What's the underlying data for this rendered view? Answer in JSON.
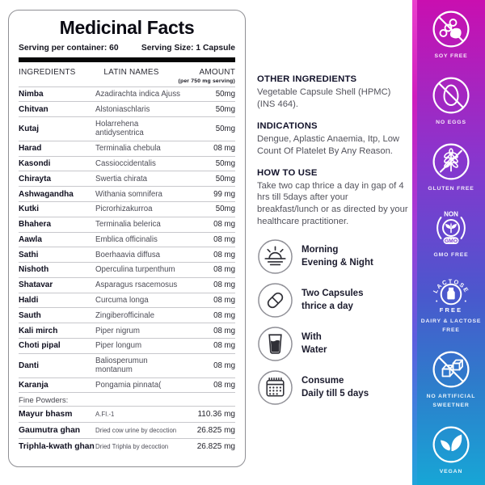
{
  "label": {
    "title": "Medicinal Facts",
    "serving_per_container": "Serving per container: 60",
    "serving_size": "Serving Size: 1 Capsule",
    "columns": {
      "ingredients": "INGREDIENTS",
      "latin": "LATIN NAMES",
      "amount": "AMOUNT",
      "amount_note": "(per 750 mg serving)"
    },
    "rows": [
      {
        "name": "Nimba",
        "latin": "Azadirachta indica Ajuss",
        "amount": "50mg"
      },
      {
        "name": "Chitvan",
        "latin": "Alstoniaschlaris",
        "amount": "50mg"
      },
      {
        "name": "Kutaj",
        "latin": "Holarrehena antidysentrica",
        "amount": "50mg"
      },
      {
        "name": "Harad",
        "latin": "Terminalia chebula",
        "amount": "08 mg"
      },
      {
        "name": "Kasondi",
        "latin": "Cassioccidentalis",
        "amount": "50mg"
      },
      {
        "name": "Chirayta",
        "latin": "Swertia chirata",
        "amount": "50mg"
      },
      {
        "name": "Ashwagandha",
        "latin": "Withania somnifera",
        "amount": "99 mg"
      },
      {
        "name": "Kutki",
        "latin": "Picrorhizakurroa",
        "amount": "50mg"
      },
      {
        "name": "Bhahera",
        "latin": "Terminalia belerica",
        "amount": "08 mg"
      },
      {
        "name": "Aawla",
        "latin": "Emblica officinalis",
        "amount": "08 mg"
      },
      {
        "name": "Sathi",
        "latin": "Boerhaavia diffusa",
        "amount": "08 mg"
      },
      {
        "name": "Nishoth",
        "latin": "Operculina turpenthum",
        "amount": "08 mg"
      },
      {
        "name": "Shatavar",
        "latin": "Asparagus rsacemosus",
        "amount": "08 mg"
      },
      {
        "name": "Haldi",
        "latin": "Curcuma longa",
        "amount": "08 mg"
      },
      {
        "name": "Sauth",
        "latin": "Zingiberofficinale",
        "amount": "08 mg"
      },
      {
        "name": "Kali mirch",
        "latin": "Piper nigrum",
        "amount": "08 mg"
      },
      {
        "name": "Choti pipal",
        "latin": "Piper longum",
        "amount": "08 mg"
      },
      {
        "name": "Danti",
        "latin": "Baliosperumun montanum",
        "amount": "08 mg"
      },
      {
        "name": "Karanja",
        "latin": "Pongamia pinnata(",
        "amount": "08 mg"
      }
    ],
    "fine_powders_label": "Fine Powders:",
    "fine_rows": [
      {
        "name": "Mayur bhasm",
        "latin": "A.FI.-1",
        "amount": "110.36 mg"
      },
      {
        "name": "Gaumutra ghan",
        "latin": "Dried cow urine by decoction",
        "amount": "26.825 mg"
      },
      {
        "name": "Triphla-kwath ghan",
        "latin": "Dried Triphla by decoction",
        "amount": "26.825 mg"
      }
    ]
  },
  "info": {
    "other_ingredients_title": "OTHER INGREDIENTS",
    "other_ingredients_text": "Vegetable Capsule Shell (HPMC) (INS 464).",
    "indications_title": "INDICATIONS",
    "indications_text": "Dengue, Aplastic Anaemia, Itp, Low Count Of Platelet By Any Reason.",
    "how_to_use_title": "HOW TO USE",
    "how_to_use_text": "Take two cap thrice a day in gap of 4 hrs till 5days after your breakfast/lunch or as directed by your healthcare practitioner.",
    "usage": [
      {
        "icon": "sunrise-icon",
        "line1": "Morning",
        "line2": "Evening & Night"
      },
      {
        "icon": "capsule-icon",
        "line1": "Two Capsules",
        "line2": "thrice a day"
      },
      {
        "icon": "water-glass-icon",
        "line1": "With",
        "line2": "Water"
      },
      {
        "icon": "calendar-icon",
        "line1": "Consume",
        "line2": "Daily till 5 days"
      }
    ]
  },
  "sidebar": {
    "gradient_top_color": "#c90fb0",
    "gradient_bottom_color": "#17a6d6",
    "gmo_non_text": "NON",
    "gmo_text": "GMO",
    "lactose_arc_top": "LACTOSE",
    "lactose_arc_bottom": "FREE",
    "badges": [
      {
        "icon": "soy-free-icon",
        "label": "SOY FREE"
      },
      {
        "icon": "no-eggs-icon",
        "label": "NO EGGS"
      },
      {
        "icon": "gluten-free-icon",
        "label": "GLUTEN FREE"
      },
      {
        "icon": "gmo-free-icon",
        "label": "GMO FREE"
      },
      {
        "icon": "lactose-free-icon",
        "label": "DAIRY & LACTOSE FREE"
      },
      {
        "icon": "no-artificial-sweetner-icon",
        "label": "NO ARTIFICIAL SWEETNER"
      },
      {
        "icon": "vegan-icon",
        "label": "VEGAN"
      }
    ]
  }
}
